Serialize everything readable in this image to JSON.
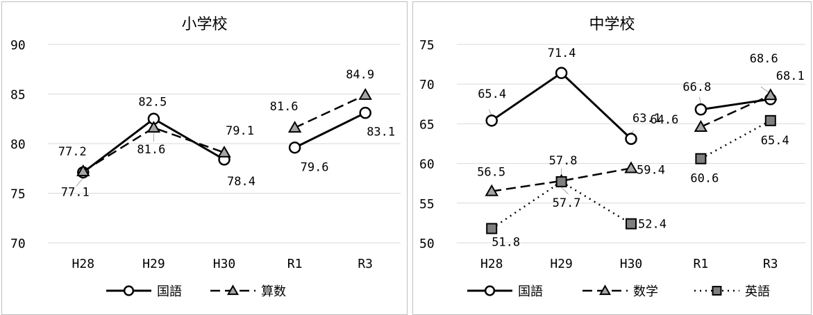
{
  "chart_data": [
    {
      "type": "line",
      "title": "小学校",
      "categories": [
        "H28",
        "H29",
        "H30",
        "R1",
        "R3"
      ],
      "ylim": [
        70,
        90
      ],
      "yticks": [
        70,
        75,
        80,
        85,
        90
      ],
      "grid": true,
      "legend_position": "bottom",
      "series": [
        {
          "name": "国語",
          "marker": "circle",
          "dash": "solid",
          "values": [
            77.1,
            82.5,
            78.4,
            79.6,
            83.1
          ],
          "labels": [
            "77.1",
            "82.5",
            "78.4",
            "79.6",
            "83.1"
          ],
          "segments": [
            [
              0,
              2
            ],
            [
              3,
              4
            ]
          ]
        },
        {
          "name": "算数",
          "marker": "triangle",
          "dash": "dashed",
          "values": [
            77.2,
            81.6,
            79.1,
            81.6,
            84.9
          ],
          "labels": [
            "77.2",
            "81.6",
            "79.1",
            "81.6",
            "84.9"
          ],
          "segments": [
            [
              0,
              2
            ],
            [
              3,
              4
            ]
          ]
        }
      ]
    },
    {
      "type": "line",
      "title": "中学校",
      "categories": [
        "H28",
        "H29",
        "H30",
        "R1",
        "R3"
      ],
      "ylim": [
        50,
        75
      ],
      "yticks": [
        50,
        55,
        60,
        65,
        70,
        75
      ],
      "grid": true,
      "legend_position": "bottom",
      "series": [
        {
          "name": "国語",
          "marker": "circle",
          "dash": "solid",
          "values": [
            65.4,
            71.4,
            63.1,
            66.8,
            68.1
          ],
          "labels": [
            "65.4",
            "71.4",
            "63.1",
            "66.8",
            "68.1"
          ],
          "segments": [
            [
              0,
              2
            ],
            [
              3,
              4
            ]
          ]
        },
        {
          "name": "数学",
          "marker": "triangle",
          "dash": "dashed",
          "values": [
            56.5,
            57.8,
            59.4,
            64.6,
            68.6
          ],
          "labels": [
            "56.5",
            "57.8",
            "59.4",
            "64.6",
            "68.6"
          ],
          "segments": [
            [
              0,
              2
            ],
            [
              3,
              4
            ]
          ]
        },
        {
          "name": "英語",
          "marker": "square",
          "dash": "dotted",
          "values": [
            51.8,
            57.7,
            52.4,
            60.6,
            65.4
          ],
          "labels": [
            "51.8",
            "57.7",
            "52.4",
            "60.6",
            "65.4"
          ],
          "segments": [
            [
              0,
              2
            ],
            [
              3,
              4
            ]
          ]
        }
      ]
    }
  ]
}
